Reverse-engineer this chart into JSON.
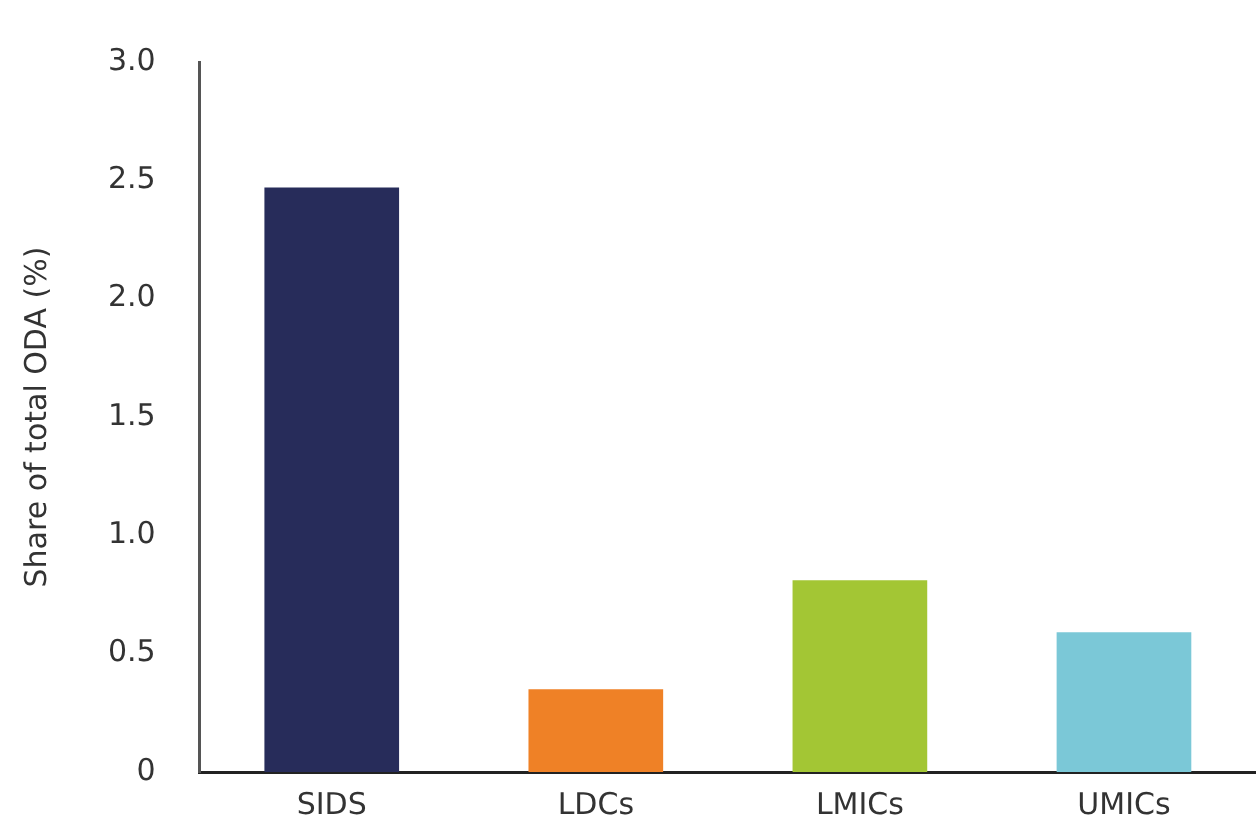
{
  "chart_data": {
    "type": "bar",
    "ylabel": "Share of total ODA (%)",
    "categories": [
      "SIDS",
      "LDCs",
      "LMICs",
      "UMICs"
    ],
    "values": [
      2.47,
      0.35,
      0.81,
      0.59
    ],
    "colors": [
      "#272c5a",
      "#ef8126",
      "#a3c634",
      "#7bc8d7"
    ],
    "ylim": [
      0,
      3
    ],
    "yticks": [
      0,
      0.5,
      {
        "value": 1,
        "label": "1.0"
      },
      1.5,
      {
        "value": 2,
        "label": "2.0"
      },
      2.5,
      {
        "value": 3,
        "label": "3.0"
      }
    ],
    "grid": false,
    "legend": false
  }
}
